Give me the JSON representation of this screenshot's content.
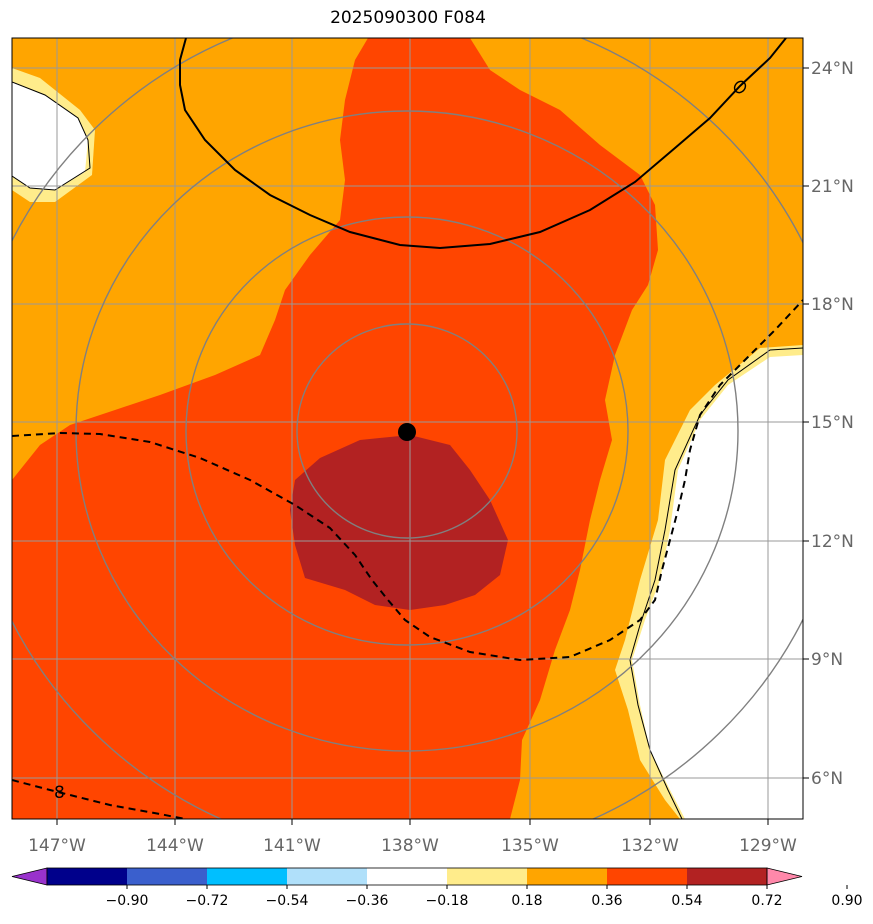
{
  "title": "2025090300 F084",
  "map": {
    "lon_labels": [
      "147°W",
      "144°W",
      "141°W",
      "138°W",
      "135°W",
      "132°W",
      "129°W"
    ],
    "lat_labels": [
      "24°N",
      "21°N",
      "18°N",
      "15°N",
      "12°N",
      "9°N",
      "6°N"
    ],
    "contour_labels": [
      "0",
      "8"
    ],
    "storm_center": "138°W 15°N",
    "range_rings": 4
  },
  "colorbar": {
    "ticks": [
      "−0.90",
      "−0.72",
      "−0.54",
      "−0.36",
      "−0.18",
      "0.18",
      "0.36",
      "0.54",
      "0.72",
      "0.90"
    ],
    "colors": [
      "#9932cc",
      "#00008b",
      "#3a5fcd",
      "#00bfff",
      "#b0e0fa",
      "#ffffff",
      "#ffec8b",
      "#ffa500",
      "#ff4500",
      "#b22222",
      "#ff88aa"
    ],
    "extend": "both"
  }
}
